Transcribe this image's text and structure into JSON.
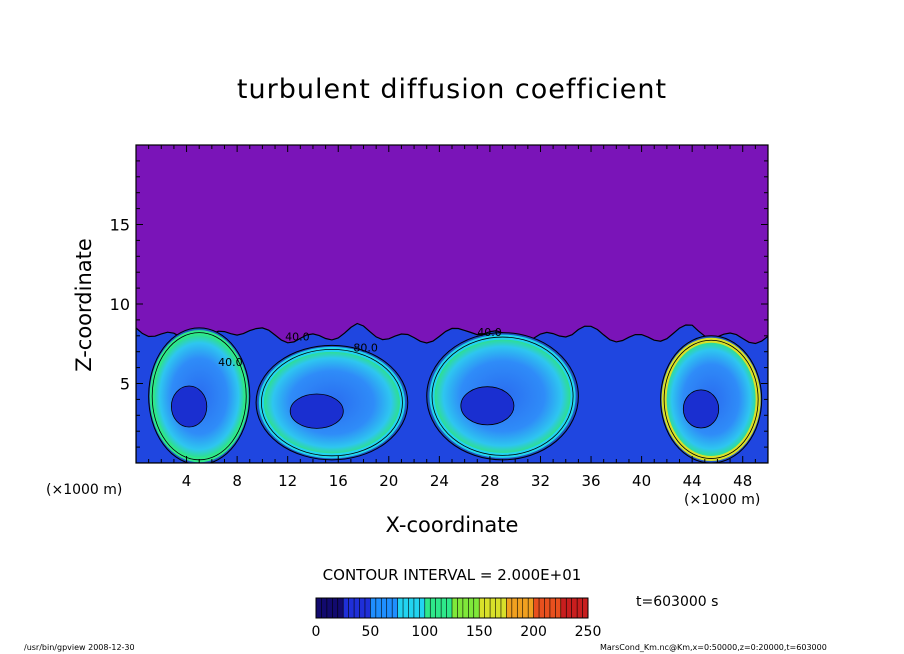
{
  "chart_data": {
    "type": "heatmap",
    "title": "turbulent diffusion coefficient",
    "xlabel": "X-coordinate",
    "ylabel": "Z-coordinate",
    "x_unit": "(×1000 m)",
    "xlim": [
      0,
      50
    ],
    "ylim": [
      0,
      20
    ],
    "x_ticks": [
      4,
      8,
      12,
      16,
      20,
      24,
      28,
      32,
      36,
      40,
      44,
      48
    ],
    "y_ticks": [
      5,
      10,
      15
    ],
    "contour_interval_label": "CONTOUR INTERVAL = 2.000E+01",
    "contour_labels": [
      {
        "text": "80.0",
        "x": 17.2,
        "z": 7.0
      },
      {
        "text": "40.0",
        "x": 11.8,
        "z": 7.7
      },
      {
        "text": "40.0",
        "x": 27.0,
        "z": 8.0
      },
      {
        "text": "40.0",
        "x": 6.5,
        "z": 6.1
      }
    ],
    "colorbar": {
      "min": 0,
      "max": 250,
      "ticks": [
        0,
        50,
        100,
        150,
        200,
        250
      ],
      "colors": [
        "#120a6e",
        "#1f2fd8",
        "#1f8fff",
        "#22d4f0",
        "#2ee88a",
        "#7fe83a",
        "#d8e02a",
        "#f0a020",
        "#e8501e",
        "#c81e1e"
      ]
    },
    "time_label": "t=603000 s",
    "mixed_layer_top_km": 8.5,
    "background_value": 0,
    "eddies": [
      {
        "cx": 5.0,
        "cz": 4.2,
        "rx": 4.0,
        "rz": 4.3,
        "rim_value": 100
      },
      {
        "cx": 15.5,
        "cz": 3.8,
        "rx": 6.0,
        "rz": 3.6,
        "rim_value": 85
      },
      {
        "cx": 29.0,
        "cz": 4.2,
        "rx": 6.0,
        "rz": 4.0,
        "rim_value": 80
      },
      {
        "cx": 45.5,
        "cz": 4.0,
        "rx": 4.0,
        "rz": 4.0,
        "rim_value": 150
      }
    ]
  },
  "footer": {
    "left": "/usr/bin/gpview   2008-12-30",
    "right": "MarsCond_Km.nc@Km,x=0:50000,z=0:20000,t=603000"
  }
}
